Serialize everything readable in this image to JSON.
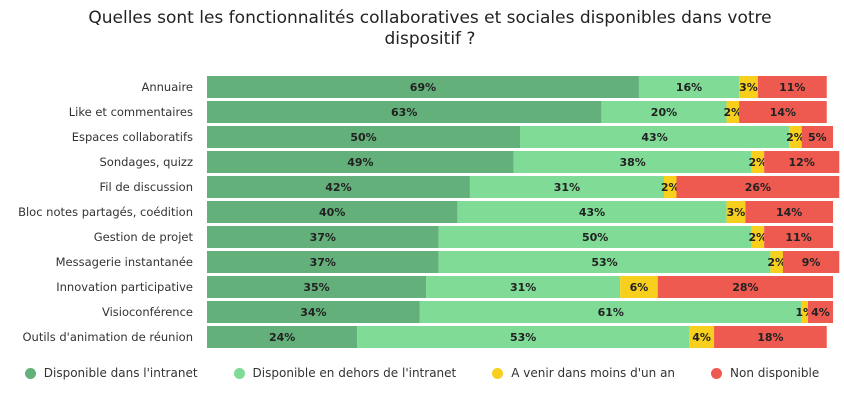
{
  "chart_data": {
    "type": "bar",
    "orientation": "horizontal",
    "stacked": true,
    "title": "Quelles sont les fonctionnalités collaboratives et sociales disponibles dans votre dispositif ?",
    "xlim": [
      0,
      100
    ],
    "grid": false,
    "legend_position": "bottom",
    "categories": [
      "Annuaire",
      "Like et commentaires",
      "Espaces collaboratifs",
      "Sondages, quizz",
      "Fil de discussion",
      "Bloc notes partagés, coédition",
      "Gestion de projet",
      "Messagerie instantanée",
      "Innovation participative",
      "Visioconférence",
      "Outils d'animation de réunion"
    ],
    "series": [
      {
        "name": "Disponible dans l'intranet",
        "color": "#63b07a",
        "values": [
          69,
          63,
          50,
          49,
          42,
          40,
          37,
          37,
          35,
          34,
          24
        ]
      },
      {
        "name": "Disponible en dehors de l'intranet",
        "color": "#7fdb96",
        "values": [
          16,
          20,
          43,
          38,
          31,
          43,
          50,
          53,
          31,
          61,
          53
        ]
      },
      {
        "name": "A venir dans moins d'un an",
        "color": "#f7cf1c",
        "values": [
          3,
          2,
          2,
          2,
          2,
          3,
          2,
          2,
          6,
          1,
          4
        ]
      },
      {
        "name": "Non disponible",
        "color": "#ef5a50",
        "values": [
          11,
          14,
          5,
          12,
          26,
          14,
          11,
          9,
          28,
          4,
          18
        ]
      }
    ]
  }
}
